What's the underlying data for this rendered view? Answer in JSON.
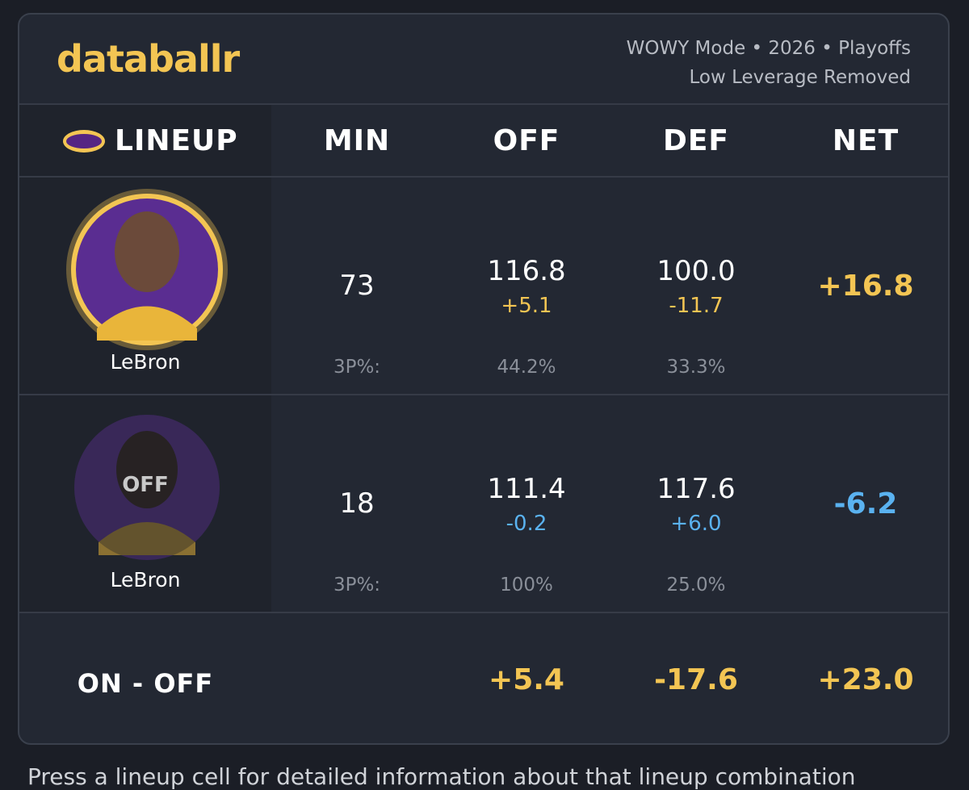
{
  "header": {
    "brand": "databallr",
    "meta": [
      "WOWY Mode • 2026 • Playoffs",
      "Low Leverage Removed"
    ]
  },
  "table": {
    "columns": [
      "LINEUP",
      "MIN",
      "OFF",
      "DEF",
      "NET"
    ],
    "rows": [
      {
        "player": "LeBron",
        "min": "73",
        "off": "116.8",
        "off_diff": "+5.1",
        "def": "100.0",
        "def_diff": "-11.7",
        "net": "+16.8",
        "threep_label": "3P%:",
        "off_3p": "44.2%",
        "def_3p": "33.3%"
      },
      {
        "player": "LeBron",
        "badge": "OFF",
        "min": "18",
        "off": "111.4",
        "off_diff": "-0.2",
        "def": "117.6",
        "def_diff": "+6.0",
        "net": "-6.2",
        "threep_label": "3P%:",
        "off_3p": "100%",
        "def_3p": "25.0%"
      }
    ],
    "summary": {
      "label": "ON - OFF",
      "off": "+5.4",
      "def": "-17.6",
      "net": "+23.0"
    }
  },
  "footer": {
    "text": "Press a lineup cell for detailed information about that lineup combination"
  }
}
